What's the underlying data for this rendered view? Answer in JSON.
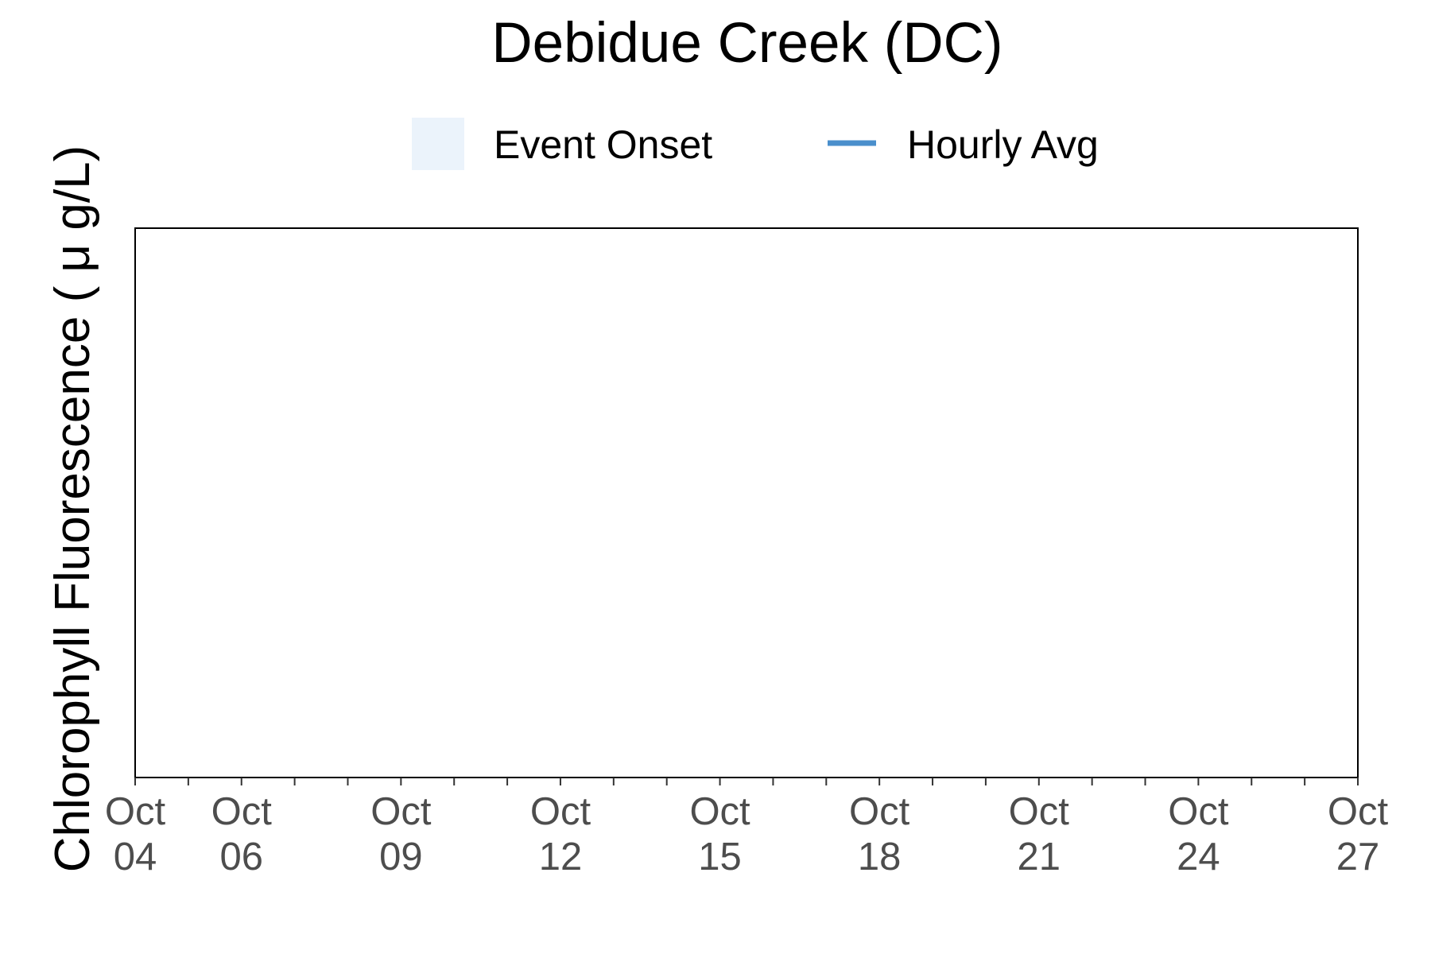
{
  "chart_data": {
    "type": "line",
    "title": "Debidue Creek (DC)",
    "xlabel": "",
    "ylabel": "Chlorophyll Fluorescence ( μ g/L)",
    "legend": {
      "placement": "top",
      "items": [
        {
          "label": "Event Onset",
          "kind": "fill",
          "color": "#EBF3FB"
        },
        {
          "label": "Hourly Avg",
          "kind": "line",
          "color": "#4A8FCC"
        }
      ]
    },
    "x_axis": {
      "scale": "date",
      "range": [
        "Oct 04",
        "Oct 27"
      ],
      "major_ticks": [
        {
          "date": "Oct 04",
          "line1": "Oct",
          "line2": "04"
        },
        {
          "date": "Oct 06",
          "line1": "Oct",
          "line2": "06"
        },
        {
          "date": "Oct 09",
          "line1": "Oct",
          "line2": "09"
        },
        {
          "date": "Oct 12",
          "line1": "Oct",
          "line2": "12"
        },
        {
          "date": "Oct 15",
          "line1": "Oct",
          "line2": "15"
        },
        {
          "date": "Oct 18",
          "line1": "Oct",
          "line2": "18"
        },
        {
          "date": "Oct 21",
          "line1": "Oct",
          "line2": "21"
        },
        {
          "date": "Oct 24",
          "line1": "Oct",
          "line2": "24"
        },
        {
          "date": "Oct 27",
          "line1": "Oct",
          "line2": "27"
        }
      ],
      "minor_ticks": [
        "Oct 05",
        "Oct 07",
        "Oct 08",
        "Oct 10",
        "Oct 11",
        "Oct 13",
        "Oct 14",
        "Oct 16",
        "Oct 17",
        "Oct 19",
        "Oct 20",
        "Oct 22",
        "Oct 23",
        "Oct 25",
        "Oct 26"
      ]
    },
    "y_axis": {
      "ticks": []
    },
    "grid": false,
    "series": [
      {
        "name": "Hourly Avg",
        "color": "#4A8FCC",
        "values": []
      }
    ],
    "event_onsets": []
  }
}
